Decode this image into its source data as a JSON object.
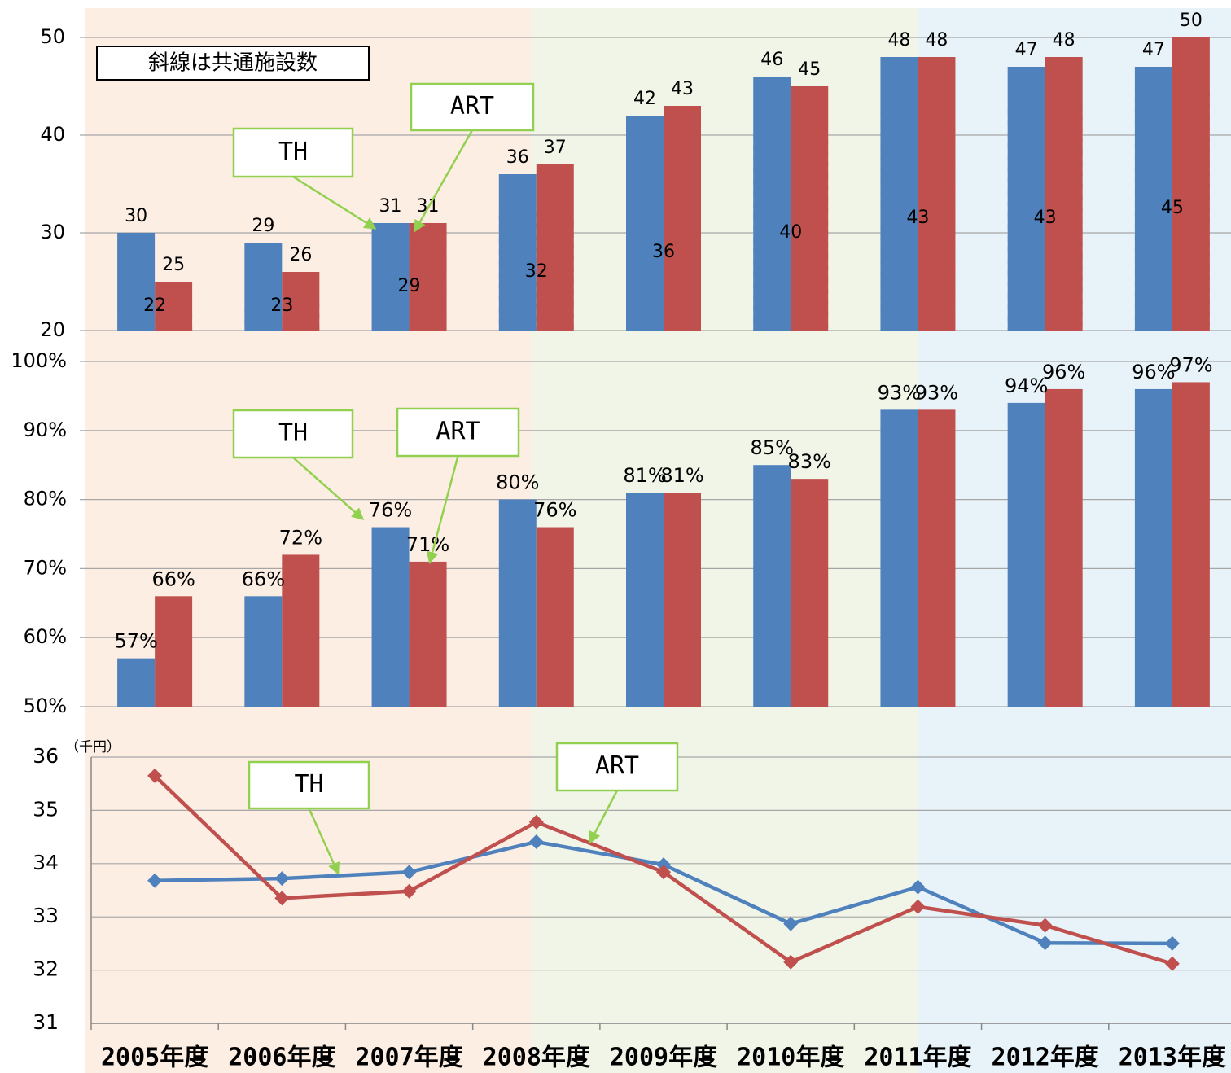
{
  "chart_data": [
    {
      "type": "bar",
      "series": [
        {
          "name": "TH",
          "color": "#4f81bd",
          "values": [
            30,
            29,
            31,
            36,
            42,
            46,
            48,
            47,
            47
          ]
        },
        {
          "name": "ART",
          "color": "#c0504d",
          "values": [
            25,
            26,
            31,
            37,
            43,
            45,
            48,
            48,
            50
          ]
        },
        {
          "name": "斜線は共通施設数",
          "color": "#b3a2c7",
          "pattern": "hatch",
          "values": [
            22,
            23,
            29,
            32,
            36,
            40,
            43,
            43,
            45
          ]
        }
      ],
      "ylim": [
        20,
        50
      ],
      "yticks": [
        20,
        30,
        40,
        50
      ],
      "grid": true
    },
    {
      "type": "bar",
      "series": [
        {
          "name": "TH",
          "color": "#4f81bd",
          "values": [
            57,
            66,
            76,
            80,
            81,
            85,
            93,
            94,
            96
          ],
          "value_labels": [
            "57%",
            "66%",
            "76%",
            "80%",
            "81%",
            "85%",
            "93%",
            "94%",
            "96%"
          ]
        },
        {
          "name": "ART",
          "color": "#c0504d",
          "values": [
            66,
            72,
            71,
            76,
            81,
            83,
            93,
            96,
            97
          ],
          "value_labels": [
            "66%",
            "72%",
            "71%",
            "76%",
            "81%",
            "83%",
            "93%",
            "96%",
            "97%"
          ]
        }
      ],
      "ylim": [
        50,
        100
      ],
      "yticks": [
        {
          "value": 50,
          "label": "50%"
        },
        {
          "value": 60,
          "label": "60%"
        },
        {
          "value": 70,
          "label": "70%"
        },
        {
          "value": 80,
          "label": "80%"
        },
        {
          "value": 90,
          "label": "90%"
        },
        {
          "value": 100,
          "label": "100%"
        }
      ],
      "grid": true
    },
    {
      "type": "line",
      "categories": [
        "2005年度",
        "2006年度",
        "2007年度",
        "2008年度",
        "2009年度",
        "2010年度",
        "2011年度",
        "2012年度",
        "2013年度"
      ],
      "y_unit_label": "（千円）",
      "series": [
        {
          "name": "TH",
          "color": "#4f81bd",
          "values": [
            33.68,
            33.72,
            33.84,
            34.41,
            33.98,
            32.87,
            33.56,
            32.51,
            32.5
          ]
        },
        {
          "name": "ART",
          "color": "#c0504d",
          "values": [
            35.65,
            33.35,
            33.48,
            34.78,
            33.84,
            32.15,
            33.19,
            32.84,
            32.12
          ]
        }
      ],
      "ylim": [
        31,
        36
      ],
      "yticks": [
        31,
        32,
        33,
        34,
        35,
        36
      ],
      "grid": true
    }
  ]
}
